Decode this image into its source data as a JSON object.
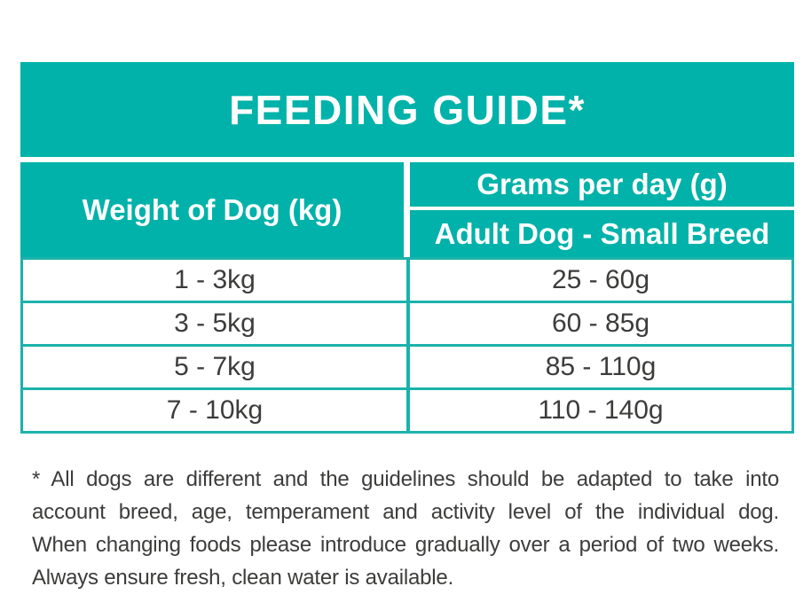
{
  "colors": {
    "accent_teal": "#00B2A9",
    "grid_teal": "#1CB2AC",
    "body_text": "#3C3C3B",
    "header_text": "#FFFFFF"
  },
  "table": {
    "title": "FEEDING GUIDE*",
    "col1_header": "Weight of Dog (kg)",
    "col2_header_top": "Grams per day (g)",
    "col2_header_bottom": "Adult Dog - Small Breed",
    "rows": [
      {
        "weight": "1 - 3kg",
        "grams": "25 - 60g"
      },
      {
        "weight": "3 - 5kg",
        "grams": "60 - 85g"
      },
      {
        "weight": "5 - 7kg",
        "grams": "85 - 110g"
      },
      {
        "weight": "7 - 10kg",
        "grams": "110 - 140g"
      }
    ]
  },
  "footnote": {
    "lines": [
      "* All dogs are different and the guidelines should be adapted to take into",
      "account breed, age, temperament and activity level of the individual dog.",
      "When changing foods please introduce gradually over a period of two weeks.",
      "Always ensure fresh, clean water is available."
    ]
  }
}
